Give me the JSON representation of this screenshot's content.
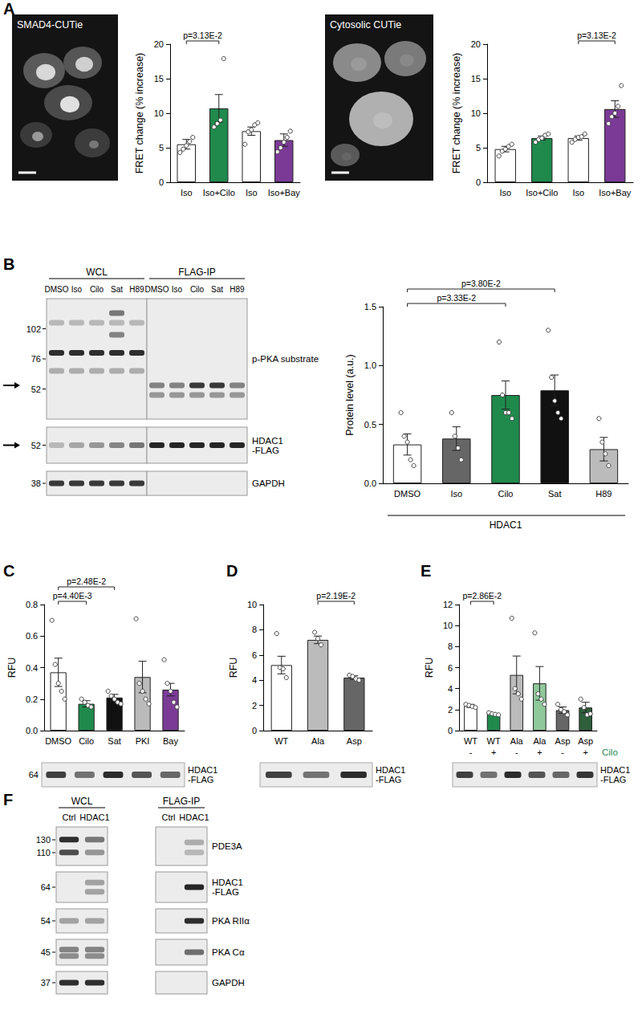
{
  "panel_labels": [
    "A",
    "B",
    "C",
    "D",
    "E",
    "F"
  ],
  "images": [
    {
      "title": "SMAD4-CUTie"
    },
    {
      "title": "Cytosolic CUTie"
    }
  ],
  "chart_data": [
    {
      "type": "bar",
      "ylabel": "FRET change (% increase)",
      "categories": [
        "Iso",
        "Iso+Cilo",
        "Iso",
        "Iso+Bay"
      ],
      "values": [
        5.5,
        10.7,
        7.4,
        6.1
      ],
      "errors": [
        0.7,
        2.0,
        0.6,
        0.9
      ],
      "points": [
        [
          4.3,
          4.8,
          5.3,
          5.9,
          6.5
        ],
        [
          8.0,
          8.5,
          9.0,
          17.9
        ],
        [
          5.5,
          7.3,
          7.6,
          8.3,
          8.6
        ],
        [
          4.4,
          5.0,
          5.8,
          6.5,
          7.4
        ]
      ],
      "colors": [
        "#ffffff",
        "#1f8a4c",
        "#ffffff",
        "#7b3a96"
      ],
      "ylim": [
        0,
        20
      ],
      "yticks": [
        0,
        5,
        10,
        15,
        20
      ],
      "grid": false,
      "annotations": [
        {
          "from": 0,
          "to": 1,
          "label": "p=3.13E-2"
        }
      ]
    },
    {
      "type": "bar",
      "ylabel": "FRET change (% increase)",
      "categories": [
        "Iso",
        "Iso+Cilo",
        "Iso",
        "Iso+Bay"
      ],
      "values": [
        4.8,
        6.4,
        6.4,
        10.6
      ],
      "errors": [
        0.4,
        0.3,
        0.3,
        1.2
      ],
      "points": [
        [
          3.8,
          4.5,
          4.8,
          5.2,
          5.5
        ],
        [
          5.8,
          6.2,
          6.4,
          6.8,
          7.0
        ],
        [
          5.8,
          6.2,
          6.5,
          6.6,
          7.0
        ],
        [
          8.5,
          9.5,
          10.0,
          11.0,
          14.0
        ]
      ],
      "colors": [
        "#ffffff",
        "#1f8a4c",
        "#ffffff",
        "#7b3a96"
      ],
      "ylim": [
        0,
        20
      ],
      "yticks": [
        0,
        5,
        10,
        15,
        20
      ],
      "grid": false,
      "annotations": [
        {
          "from": 2,
          "to": 3,
          "label": "p=3.13E-2"
        }
      ]
    },
    {
      "type": "bar",
      "ylabel": "Protein level (a.u.)",
      "categories": [
        "DMSO",
        "Iso",
        "Cilo",
        "Sat",
        "H89"
      ],
      "values": [
        0.33,
        0.38,
        0.75,
        0.79,
        0.29
      ],
      "errors": [
        0.09,
        0.1,
        0.12,
        0.13,
        0.1
      ],
      "points": [
        [
          0.6,
          0.4,
          0.35,
          0.2,
          0.15
        ],
        [
          0.6,
          0.4,
          0.3,
          0.2
        ],
        [
          1.2,
          0.75,
          0.6,
          0.6,
          0.55
        ],
        [
          1.3,
          0.9,
          0.7,
          0.6,
          0.55
        ],
        [
          0.55,
          0.35,
          0.25,
          0.15
        ]
      ],
      "colors": [
        "#ffffff",
        "#666666",
        "#1f8a4c",
        "#111111",
        "#bbbbbb"
      ],
      "ylim": [
        0,
        1.5
      ],
      "yticks": [
        {
          "value": 0,
          "label": "0.0"
        },
        0.5,
        {
          "value": 1,
          "label": "1.0"
        },
        1.5
      ],
      "grid": false,
      "annotations": [
        {
          "from": 0,
          "to": 2,
          "label": "p=3.33E-2"
        },
        {
          "from": 0,
          "to": 3,
          "label": "p=3.80E-2"
        }
      ],
      "group_label": "HDAC1"
    },
    {
      "type": "bar",
      "ylabel": "RFU",
      "categories": [
        "DMSO",
        "Cilo",
        "Sat",
        "PKI",
        "Bay"
      ],
      "values": [
        0.37,
        0.17,
        0.21,
        0.34,
        0.26
      ],
      "errors": [
        0.09,
        0.02,
        0.02,
        0.1,
        0.04
      ],
      "points": [
        [
          0.7,
          0.42,
          0.3,
          0.25,
          0.2
        ],
        [
          0.2,
          0.18,
          0.16,
          0.15
        ],
        [
          0.25,
          0.22,
          0.2,
          0.18,
          0.17
        ],
        [
          0.71,
          0.3,
          0.25,
          0.2,
          0.17
        ],
        [
          0.45,
          0.3,
          0.25,
          0.18,
          0.15
        ]
      ],
      "colors": [
        "#ffffff",
        "#1f8a4c",
        "#111111",
        "#bbbbbb",
        "#7b3a96"
      ],
      "ylim": [
        0,
        0.8
      ],
      "yticks": [
        {
          "value": 0,
          "label": "0.0"
        },
        0.2,
        0.4,
        0.6,
        0.8
      ],
      "grid": false,
      "annotations": [
        {
          "from": 0,
          "to": 1,
          "label": "p=4.40E-3"
        },
        {
          "from": 0,
          "to": 2,
          "label": "p=2.48E-2"
        }
      ],
      "blot": {
        "label": "HDAC1\n-FLAG",
        "markers": [
          64
        ]
      }
    },
    {
      "type": "bar",
      "ylabel": "RFU",
      "categories": [
        "WT",
        "Ala",
        "Asp"
      ],
      "values": [
        5.2,
        7.2,
        4.2
      ],
      "errors": [
        0.7,
        0.3,
        0.15
      ],
      "points": [
        [
          7.7,
          5.0,
          4.9,
          4.2
        ],
        [
          7.8,
          7.3,
          6.8
        ],
        [
          4.4,
          4.3,
          4.1,
          4.0
        ]
      ],
      "colors": [
        "#ffffff",
        "#bbbbbb",
        "#666666"
      ],
      "ylim": [
        0,
        10
      ],
      "yticks": [
        0,
        2,
        4,
        6,
        8,
        10
      ],
      "grid": false,
      "annotations": [
        {
          "from": 1,
          "to": 2,
          "label": "p=2.19E-2"
        }
      ],
      "blot": {
        "label": "HDAC1\n-FLAG"
      }
    },
    {
      "type": "bar",
      "ylabel": "RFU",
      "categories": [
        "WT",
        "WT",
        "Ala",
        "Ala",
        "Asp",
        "Asp"
      ],
      "treatment": [
        "-",
        "+",
        "-",
        "+",
        "-",
        "+"
      ],
      "treatment_label": "Cilo",
      "values": [
        2.35,
        1.6,
        5.3,
        4.5,
        1.95,
        2.2
      ],
      "errors": [
        0.15,
        0.05,
        1.8,
        1.6,
        0.3,
        0.5
      ],
      "points": [
        [
          2.5,
          2.4,
          2.3,
          2.2
        ],
        [
          1.7,
          1.6,
          1.55,
          1.5
        ],
        [
          10.7,
          4.0,
          3.5,
          3.0
        ],
        [
          9.3,
          3.5,
          3.0,
          2.5
        ],
        [
          2.5,
          2.0,
          1.8,
          1.5
        ],
        [
          3.0,
          2.2,
          1.5,
          1.6
        ]
      ],
      "colors": [
        "#ffffff",
        "#1f8a4c",
        "#bbbbbb",
        "#8fc99a",
        "#666666",
        "#2e5e3a"
      ],
      "ylim": [
        0,
        12
      ],
      "yticks": [
        0,
        2,
        4,
        6,
        8,
        10,
        12
      ],
      "grid": false,
      "annotations": [
        {
          "from": 0,
          "to": 1,
          "label": "p=2.86E-2"
        }
      ],
      "blot": {
        "label": "HDAC1\n-FLAG"
      }
    }
  ],
  "blots": [
    {
      "groups": [
        {
          "label": "WCL",
          "lanes": [
            "DMSO",
            "Iso",
            "Cilo",
            "Sat",
            "H89"
          ]
        },
        {
          "label": "FLAG-IP",
          "lanes": [
            "DMSO",
            "Iso",
            "Cilo",
            "Sat",
            "H89"
          ]
        }
      ],
      "rows": [
        {
          "label": "p-PKA substrate",
          "markers": [
            102,
            76,
            52
          ]
        },
        {
          "label": "HDAC1\n-FLAG",
          "markers": [
            52
          ]
        },
        {
          "label": "GAPDH",
          "markers": [
            38
          ]
        }
      ]
    },
    {
      "groups": [
        {
          "label": "WCL",
          "lanes": [
            "Ctrl",
            "HDAC1"
          ]
        },
        {
          "label": "FLAG-IP",
          "lanes": [
            "Ctrl",
            "HDAC1"
          ]
        }
      ],
      "rows": [
        {
          "label": "PDE3A",
          "markers": [
            130,
            110
          ]
        },
        {
          "label": "HDAC1\n-FLAG",
          "markers": [
            64
          ]
        },
        {
          "label": "PKA RIIα",
          "markers": [
            54
          ]
        },
        {
          "label": "PKA Cα",
          "markers": [
            45
          ]
        },
        {
          "label": "GAPDH",
          "markers": [
            37
          ]
        }
      ]
    }
  ]
}
